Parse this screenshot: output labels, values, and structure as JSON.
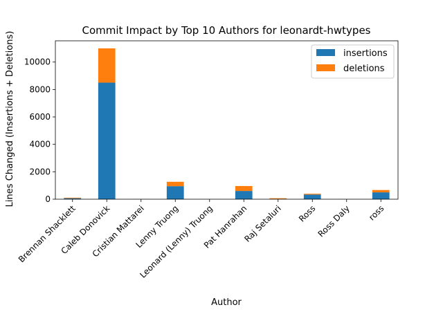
{
  "chart_data": {
    "type": "bar",
    "stacked": true,
    "title": "Commit Impact by Top 10 Authors for leonardt-hwtypes",
    "xlabel": "Author",
    "ylabel": "Lines Changed (Insertions + Deletions)",
    "categories": [
      "Brennan Shacklett",
      "Caleb Donovick",
      "Cristian Mattarei",
      "Lenny Truong",
      "Leonard (Lenny) Truong",
      "Pat Hanrahan",
      "Raj Setaluri",
      "Ross",
      "Ross Daly",
      "ross"
    ],
    "series": [
      {
        "name": "insertions",
        "color": "#1f77b4",
        "values": [
          70,
          8500,
          5,
          950,
          2,
          600,
          20,
          340,
          5,
          500
        ]
      },
      {
        "name": "deletions",
        "color": "#ff7f0e",
        "values": [
          40,
          2500,
          3,
          320,
          1,
          360,
          50,
          60,
          2,
          170
        ]
      }
    ],
    "ylim": [
      0,
      11550
    ],
    "yticks": [
      0,
      2000,
      4000,
      6000,
      8000,
      10000
    ],
    "legend": "top-right",
    "grid": false
  }
}
